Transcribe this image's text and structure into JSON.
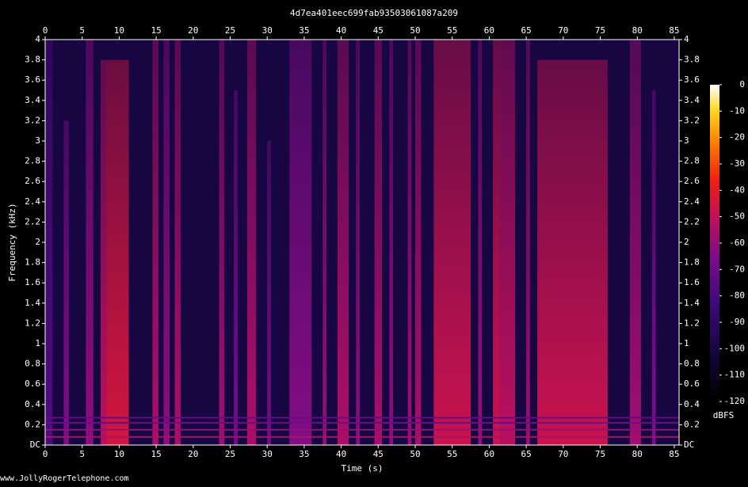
{
  "chart_data": {
    "type": "spectrogram",
    "title": "4d7ea401eec699fab93503061087a209",
    "x_label": "Time (s)",
    "y_label": "Frequency (kHz)",
    "footer": "www.JollyRogerTelephone.com",
    "xlim": [
      0,
      85.65
    ],
    "xticks": [
      0,
      5,
      10,
      15,
      20,
      25,
      30,
      35,
      40,
      45,
      50,
      55,
      60,
      65,
      70,
      75,
      80,
      85
    ],
    "ylim": [
      0,
      4
    ],
    "yticks": [
      {
        "value": 0,
        "label": "DC"
      },
      0.2,
      0.4,
      0.6,
      0.8,
      1,
      1.2,
      1.4,
      1.6,
      1.8,
      2,
      2.2,
      2.4,
      2.6,
      2.8,
      3,
      3.2,
      3.4,
      3.6,
      3.8,
      4
    ],
    "colorbar_label": "dBFS",
    "colorbar_lim": [
      -120,
      0
    ],
    "colorbar_ticks": [
      0,
      -10,
      -20,
      -30,
      -40,
      -50,
      -60,
      -70,
      -80,
      -90,
      -100,
      -110,
      -120
    ],
    "background_level": -100,
    "tones": [
      {
        "freq": 0.08,
        "level": -55
      },
      {
        "freq": 0.15,
        "level": -60
      },
      {
        "freq": 0.22,
        "level": -70
      },
      {
        "freq": 0.27,
        "level": -72
      }
    ],
    "events": [
      {
        "start": 0,
        "end": 1,
        "fmax": 4,
        "level": -78
      },
      {
        "start": 2.5,
        "end": 3.2,
        "fmax": 3.2,
        "level": -65
      },
      {
        "start": 5.5,
        "end": 6.5,
        "fmax": 4,
        "level": -62
      },
      {
        "start": 7.5,
        "end": 8.3,
        "fmax": 3.8,
        "level": -52
      },
      {
        "start": 8.3,
        "end": 11.3,
        "fmax": 3.8,
        "level": -45
      },
      {
        "start": 14.5,
        "end": 15.3,
        "fmax": 4,
        "level": -55
      },
      {
        "start": 16,
        "end": 16.8,
        "fmax": 4,
        "level": -62
      },
      {
        "start": 17.5,
        "end": 18.3,
        "fmax": 4,
        "level": -55
      },
      {
        "start": 23.5,
        "end": 24.2,
        "fmax": 4,
        "level": -58
      },
      {
        "start": 25.5,
        "end": 26,
        "fmax": 3.5,
        "level": -66
      },
      {
        "start": 27.3,
        "end": 28.5,
        "fmax": 4,
        "level": -55
      },
      {
        "start": 30,
        "end": 30.5,
        "fmax": 3,
        "level": -68
      },
      {
        "start": 33,
        "end": 36,
        "fmax": 4,
        "level": -64
      },
      {
        "start": 37.5,
        "end": 38,
        "fmax": 4,
        "level": -60
      },
      {
        "start": 39.5,
        "end": 41,
        "fmax": 4,
        "level": -55
      },
      {
        "start": 42,
        "end": 42.5,
        "fmax": 4,
        "level": -62
      },
      {
        "start": 44.5,
        "end": 45.5,
        "fmax": 4,
        "level": -56
      },
      {
        "start": 46.5,
        "end": 47,
        "fmax": 4,
        "level": -62
      },
      {
        "start": 49,
        "end": 49.5,
        "fmax": 4,
        "level": -58
      },
      {
        "start": 50,
        "end": 50.8,
        "fmax": 4,
        "level": -56
      },
      {
        "start": 52.5,
        "end": 57.5,
        "fmax": 4,
        "level": -48
      },
      {
        "start": 58.5,
        "end": 59,
        "fmax": 4,
        "level": -60
      },
      {
        "start": 60.5,
        "end": 61.5,
        "fmax": 4,
        "level": -48
      },
      {
        "start": 61.5,
        "end": 63.5,
        "fmax": 4,
        "level": -52
      },
      {
        "start": 65,
        "end": 65.5,
        "fmax": 4,
        "level": -58
      },
      {
        "start": 66.5,
        "end": 76,
        "fmax": 3.8,
        "level": -48
      },
      {
        "start": 79,
        "end": 80.5,
        "fmax": 4,
        "level": -58
      },
      {
        "start": 82,
        "end": 82.5,
        "fmax": 3.5,
        "level": -66
      }
    ]
  }
}
